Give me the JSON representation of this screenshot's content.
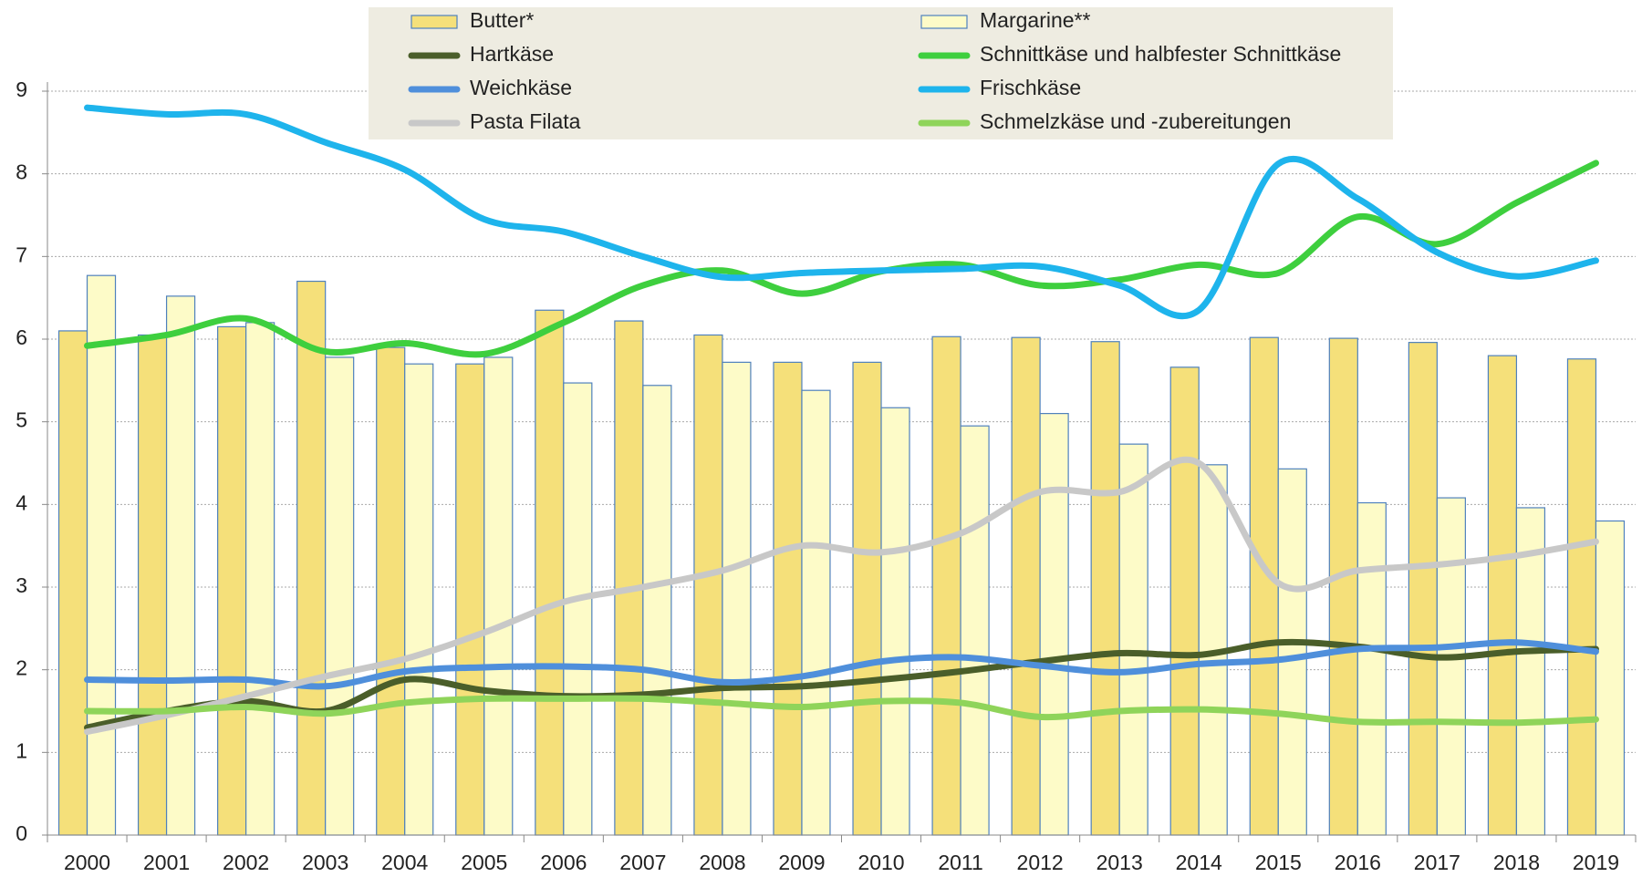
{
  "chart_data": {
    "type": "bar-line",
    "categories": [
      "2000",
      "2001",
      "2002",
      "2003",
      "2004",
      "2005",
      "2006",
      "2007",
      "2008",
      "2009",
      "2010",
      "2011",
      "2012",
      "2013",
      "2014",
      "2015",
      "2016",
      "2017",
      "2018",
      "2019"
    ],
    "series": [
      {
        "name": "Butter*",
        "type": "bar",
        "color": "#f5e07a",
        "values": [
          6.1,
          6.05,
          6.15,
          6.7,
          5.9,
          5.7,
          6.35,
          6.22,
          6.05,
          5.72,
          5.72,
          6.03,
          6.02,
          5.97,
          5.66,
          6.02,
          6.01,
          5.96,
          5.8,
          5.76
        ]
      },
      {
        "name": "Margarine**",
        "type": "bar",
        "color": "#fdfbc8",
        "values": [
          6.77,
          6.52,
          6.2,
          5.78,
          5.7,
          5.78,
          5.47,
          5.44,
          5.72,
          5.38,
          5.17,
          4.95,
          5.1,
          4.73,
          4.48,
          4.43,
          4.02,
          4.08,
          3.96,
          3.8
        ]
      },
      {
        "name": "Hartkäse",
        "type": "line",
        "color": "#4a5e2a",
        "values": [
          1.3,
          1.5,
          1.62,
          1.5,
          1.88,
          1.75,
          1.68,
          1.7,
          1.78,
          1.8,
          1.88,
          1.98,
          2.1,
          2.2,
          2.18,
          2.33,
          2.28,
          2.15,
          2.22,
          2.25
        ]
      },
      {
        "name": "Schnittkäse und halbfester Schnittkäse",
        "type": "line",
        "color": "#3ecf3e",
        "values": [
          5.92,
          6.05,
          6.25,
          5.85,
          5.95,
          5.82,
          6.2,
          6.65,
          6.83,
          6.55,
          6.82,
          6.9,
          6.65,
          6.72,
          6.9,
          6.8,
          7.48,
          7.15,
          7.65,
          8.13
        ]
      },
      {
        "name": "Weichkäse",
        "type": "line",
        "color": "#4f8fdb",
        "values": [
          1.88,
          1.87,
          1.88,
          1.8,
          1.98,
          2.03,
          2.04,
          2.0,
          1.85,
          1.92,
          2.1,
          2.15,
          2.05,
          1.97,
          2.07,
          2.12,
          2.25,
          2.27,
          2.33,
          2.22
        ]
      },
      {
        "name": "Frischkäse",
        "type": "line",
        "color": "#1eb4ec",
        "values": [
          8.8,
          8.72,
          8.72,
          8.38,
          8.05,
          7.45,
          7.3,
          7.0,
          6.75,
          6.8,
          6.83,
          6.85,
          6.88,
          6.65,
          6.35,
          8.12,
          7.7,
          7.05,
          6.76,
          6.95
        ]
      },
      {
        "name": "Pasta Filata",
        "type": "line",
        "color": "#c8c8c8",
        "values": [
          1.25,
          1.45,
          1.68,
          1.92,
          2.13,
          2.45,
          2.82,
          3.0,
          3.2,
          3.5,
          3.42,
          3.65,
          4.15,
          4.15,
          4.5,
          3.05,
          3.2,
          3.27,
          3.38,
          3.55
        ]
      },
      {
        "name": "Schmelzkäse und -zubereitungen",
        "type": "line",
        "color": "#8fd45a",
        "values": [
          1.5,
          1.5,
          1.55,
          1.47,
          1.6,
          1.65,
          1.65,
          1.65,
          1.6,
          1.55,
          1.62,
          1.6,
          1.43,
          1.5,
          1.52,
          1.47,
          1.37,
          1.37,
          1.36,
          1.4
        ]
      }
    ],
    "ylim": [
      0,
      9
    ],
    "yticks": [
      0,
      1,
      2,
      3,
      4,
      5,
      6,
      7,
      8,
      9
    ],
    "grid": true
  }
}
